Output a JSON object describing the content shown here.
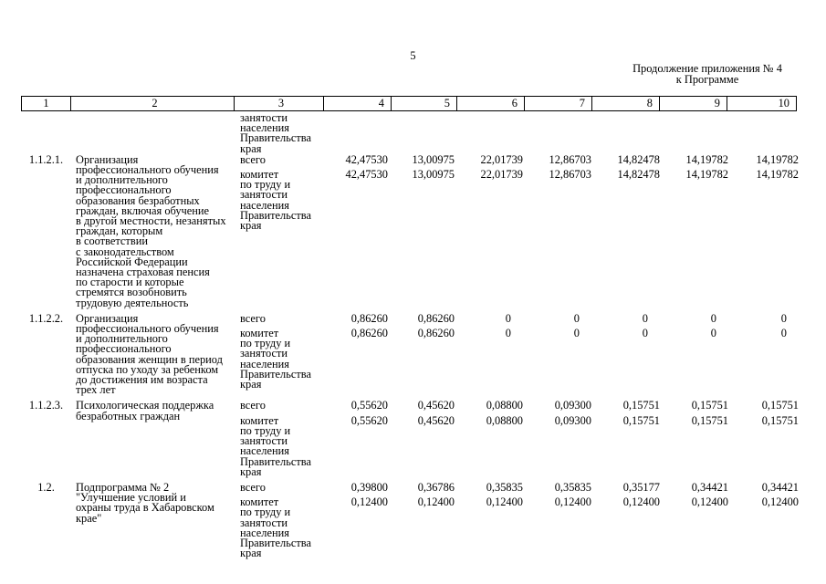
{
  "page": {
    "number": "5",
    "continuation_note_line1": "Продолжение приложения № 4",
    "continuation_note_line2": "к Программе"
  },
  "table": {
    "column_headers": [
      "1",
      "2",
      "3",
      "4",
      "5",
      "6",
      "7",
      "8",
      "9",
      "10"
    ],
    "carryover_executor": "занятости\nнаселения\nПравительства\nкрая",
    "rows": [
      {
        "id": "1.1.2.1.",
        "activity": "Организация\nпрофессионального обучения\nи дополнительного\nпрофессионального\nобразования безработных\nграждан, включая обучение\nв другой местности, незанятых\nграждан, которым\nв соответствии\nс законодательством\nРоссийской Федерации\nназначена страховая пенсия\nпо старости и которые\nстремятся возобновить\nтрудовую деятельность",
        "total_label": "всего",
        "executor_label": "комитет\nпо труду и\nзанятости\nнаселения\nПравительства\nкрая",
        "total_values": [
          "42,47530",
          "13,00975",
          "22,01739",
          "12,86703",
          "14,82478",
          "14,19782",
          "14,19782"
        ],
        "executor_values": [
          "42,47530",
          "13,00975",
          "22,01739",
          "12,86703",
          "14,82478",
          "14,19782",
          "14,19782"
        ]
      },
      {
        "id": "1.1.2.2.",
        "activity": "Организация\nпрофессионального обучения\nи дополнительного\nпрофессионального\nобразования женщин в период\nотпуска по уходу за ребенком\nдо достижения им возраста\nтрех лет",
        "total_label": "всего",
        "executor_label": "комитет\nпо труду и\nзанятости\nнаселения\nПравительства\nкрая",
        "total_values": [
          "0,86260",
          "0,86260",
          "0",
          "0",
          "0",
          "0",
          "0"
        ],
        "executor_values": [
          "0,86260",
          "0,86260",
          "0",
          "0",
          "0",
          "0",
          "0"
        ]
      },
      {
        "id": "1.1.2.3.",
        "activity": "Психологическая поддержка\nбезработных граждан",
        "total_label": "всего",
        "executor_label": "комитет\nпо труду и\nзанятости\nнаселения\nПравительства\nкрая",
        "total_values": [
          "0,55620",
          "0,45620",
          "0,08800",
          "0,09300",
          "0,15751",
          "0,15751",
          "0,15751"
        ],
        "executor_values": [
          "0,55620",
          "0,45620",
          "0,08800",
          "0,09300",
          "0,15751",
          "0,15751",
          "0,15751"
        ]
      },
      {
        "id": "1.2.",
        "activity": "Подпрограмма № 2\n\"Улучшение условий и\nохраны труда в Хабаровском\nкрае\"",
        "total_label": "всего",
        "executor_label": "комитет\nпо труду и\nзанятости\nнаселения\nПравительства\nкрая",
        "total_values": [
          "0,39800",
          "0,36786",
          "0,35835",
          "0,35835",
          "0,35177",
          "0,34421",
          "0,34421"
        ],
        "executor_values": [
          "0,12400",
          "0,12400",
          "0,12400",
          "0,12400",
          "0,12400",
          "0,12400",
          "0,12400"
        ]
      }
    ]
  }
}
